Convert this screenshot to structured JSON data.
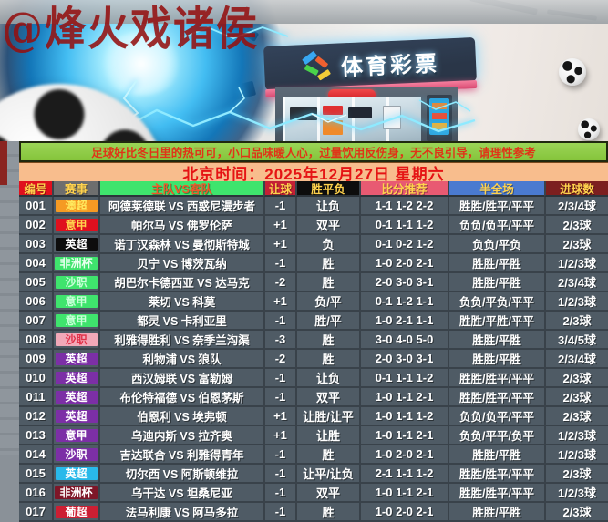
{
  "watermark": "@烽火戏诸侯",
  "hero": {
    "sign_text": "体育彩票",
    "logo_colors": [
      "#38a8f2",
      "#4ad24a",
      "#f2cd38",
      "#f06030"
    ]
  },
  "notice": {
    "text": "足球好比冬日里的热可可，小口品味暖人心，过量饮用反伤身，无不良引导，请理性参考",
    "bg": "#8cc93e",
    "fg": "#e03418"
  },
  "datetime": {
    "text": "北京时间：2025年12月27日 星期六",
    "bg": "#f8bd8d",
    "fg": "#e51414"
  },
  "table": {
    "columns": [
      "编号",
      "赛事",
      "主队VS客队",
      "让球",
      "胜平负",
      "比分推荐",
      "半全场",
      "进球数"
    ],
    "header_styles": [
      {
        "bg": "#e0101e",
        "fg": "#ffd24d"
      },
      {
        "bg": "#6e6e6e",
        "fg": "#ffd24d"
      },
      {
        "bg": "#3fe46d",
        "fg": "#f2552a"
      },
      {
        "bg": "#c42035",
        "fg": "#ffd24d"
      },
      {
        "bg": "#0d0d0d",
        "fg": "#ffd24d"
      },
      {
        "bg": "#e85a72",
        "fg": "#ffd24d"
      },
      {
        "bg": "#4a7ad0",
        "fg": "#ffd24d"
      },
      {
        "bg": "#7c1f1f",
        "fg": "#ffd24d"
      }
    ],
    "row_bg": "#4f5b65",
    "rows": [
      {
        "id": "001",
        "league": "澳超",
        "badge_bg": "#f59a23",
        "badge_fg": "#ffe95e",
        "match": "阿德莱德联 VS 西惑尼漫步者",
        "handicap": "-1",
        "wdl": "让负",
        "scores": "1-1 1-2 2-2",
        "half_full": "胜胜/胜平/平平",
        "goals": "2/3/4球"
      },
      {
        "id": "002",
        "league": "意甲",
        "badge_bg": "#e0101e",
        "badge_fg": "#ffd24d",
        "match": "帕尔马 VS 佛罗伦萨",
        "handicap": "+1",
        "wdl": "双平",
        "scores": "0-1 1-1 1-2",
        "half_full": "负负/负平/平平",
        "goals": "2/3球"
      },
      {
        "id": "003",
        "league": "英超",
        "badge_bg": "#0d0d0d",
        "badge_fg": "#ffffff",
        "match": "诺丁汉森林 VS 曼彻斯特城",
        "handicap": "+1",
        "wdl": "负",
        "scores": "0-1 0-2 1-2",
        "half_full": "负负/平负",
        "goals": "2/3球"
      },
      {
        "id": "004",
        "league": "非洲杯",
        "badge_bg": "#3fe46d",
        "badge_fg": "#eafff0",
        "match": "贝宁 VS 博茨瓦纳",
        "handicap": "-1",
        "wdl": "胜",
        "scores": "1-0 2-0 2-1",
        "half_full": "胜胜/平胜",
        "goals": "1/2/3球"
      },
      {
        "id": "005",
        "league": "沙职",
        "badge_bg": "#3fe46d",
        "badge_fg": "#c8ffd8",
        "match": "胡巴尔卡德西亚 VS 达马克",
        "handicap": "-2",
        "wdl": "胜",
        "scores": "2-0 3-0 3-1",
        "half_full": "胜胜/平胜",
        "goals": "2/3/4球"
      },
      {
        "id": "006",
        "league": "意甲",
        "badge_bg": "#3fe46d",
        "badge_fg": "#c8ffd8",
        "match": "莱切 VS 科莫",
        "handicap": "+1",
        "wdl": "负/平",
        "scores": "0-1 1-2 1-1",
        "half_full": "负负/平负/平平",
        "goals": "1/2/3球"
      },
      {
        "id": "007",
        "league": "意甲",
        "badge_bg": "#3fe46d",
        "badge_fg": "#c8ffd8",
        "match": "都灵 VS 卡利亚里",
        "handicap": "-1",
        "wdl": "胜/平",
        "scores": "1-0 2-1 1-1",
        "half_full": "胜胜/平胜/平平",
        "goals": "2/3球"
      },
      {
        "id": "008",
        "league": "沙职",
        "badge_bg": "#f2a8b8",
        "badge_fg": "#e03048",
        "match": "利雅得胜利 VS 奈季兰沟渠",
        "handicap": "-3",
        "wdl": "胜",
        "scores": "3-0 4-0 5-0",
        "half_full": "胜胜/平胜",
        "goals": "3/4/5球"
      },
      {
        "id": "009",
        "league": "英超",
        "badge_bg": "#7c2fa6",
        "badge_fg": "#ffffff",
        "match": "利物浦 VS 狼队",
        "handicap": "-2",
        "wdl": "胜",
        "scores": "2-0 3-0 3-1",
        "half_full": "胜胜/平胜",
        "goals": "2/3/4球"
      },
      {
        "id": "010",
        "league": "英超",
        "badge_bg": "#7c2fa6",
        "badge_fg": "#ffffff",
        "match": "西汉姆联 VS 富勒姆",
        "handicap": "-1",
        "wdl": "让负",
        "scores": "0-1 1-1 1-2",
        "half_full": "胜胜/胜平/平平",
        "goals": "2/3球"
      },
      {
        "id": "011",
        "league": "英超",
        "badge_bg": "#7c2fa6",
        "badge_fg": "#ffffff",
        "match": "布伦特福德 VS 伯恩茅斯",
        "handicap": "-1",
        "wdl": "双平",
        "scores": "1-0 1-1 2-1",
        "half_full": "胜胜/胜平/平平",
        "goals": "2/3球"
      },
      {
        "id": "012",
        "league": "英超",
        "badge_bg": "#7c2fa6",
        "badge_fg": "#ffffff",
        "match": "伯恩利 VS 埃弗顿",
        "handicap": "+1",
        "wdl": "让胜/让平",
        "scores": "1-0 1-1 1-2",
        "half_full": "负负/负平/平平",
        "goals": "2/3球"
      },
      {
        "id": "013",
        "league": "意甲",
        "badge_bg": "#7c2fa6",
        "badge_fg": "#ffffff",
        "match": "乌迪内斯 VS 拉齐奥",
        "handicap": "+1",
        "wdl": "让胜",
        "scores": "1-0 1-1 2-1",
        "half_full": "负负/平平/负平",
        "goals": "1/2/3球"
      },
      {
        "id": "014",
        "league": "沙职",
        "badge_bg": "#7c2fa6",
        "badge_fg": "#ffffff",
        "match": "吉达联合 VS 利雅得青年",
        "handicap": "-1",
        "wdl": "胜",
        "scores": "1-0 2-0 2-1",
        "half_full": "胜胜/平胜",
        "goals": "1/2/3球"
      },
      {
        "id": "015",
        "league": "英超",
        "badge_bg": "#29b9ea",
        "badge_fg": "#ffffff",
        "match": "切尔西 VS 阿斯顿维拉",
        "handicap": "-1",
        "wdl": "让平/让负",
        "scores": "2-1 1-1 1-2",
        "half_full": "胜胜/胜平/平平",
        "goals": "2/3球"
      },
      {
        "id": "016",
        "league": "非洲杯",
        "badge_bg": "#7e1728",
        "badge_fg": "#ffffff",
        "match": "乌干达 VS 坦桑尼亚",
        "handicap": "-1",
        "wdl": "双平",
        "scores": "1-0 1-1 2-1",
        "half_full": "胜胜/胜平/平平",
        "goals": "1/2/3球"
      },
      {
        "id": "017",
        "league": "葡超",
        "badge_bg": "#cc1f33",
        "badge_fg": "#ffffff",
        "match": "法马利康 VS 阿马多拉",
        "handicap": "-1",
        "wdl": "胜",
        "scores": "1-0 2-0 2-1",
        "half_full": "胜胜/平胜",
        "goals": "2/3球"
      }
    ]
  }
}
